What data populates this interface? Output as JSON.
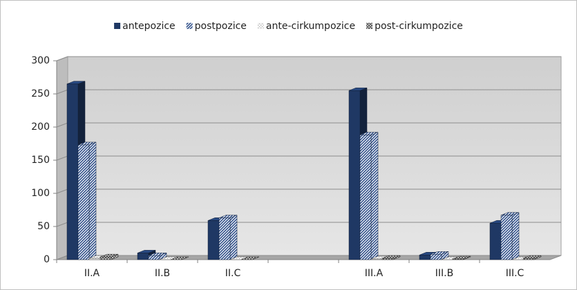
{
  "chart_data": {
    "type": "bar3d",
    "categories": [
      "II.A",
      "II.B",
      "II.C",
      null,
      "III.A",
      "III.B",
      "III.C"
    ],
    "series": [
      {
        "name": "antepozice",
        "color": "#1f3864",
        "pattern": "solid",
        "values": [
          265,
          10,
          59,
          null,
          255,
          7,
          55
        ]
      },
      {
        "name": "postpozice",
        "color": "#2f4f8a",
        "pattern": "hatch",
        "values": [
          173,
          6,
          63,
          null,
          188,
          8,
          67
        ]
      },
      {
        "name": "ante-cirkumpozice",
        "color": "#a6a6a6",
        "pattern": "dots",
        "values": [
          2,
          0,
          0,
          null,
          1,
          0,
          0
        ]
      },
      {
        "name": "post-cirkumpozice",
        "color": "#595959",
        "pattern": "checker",
        "values": [
          4,
          0,
          0,
          null,
          2,
          1,
          2
        ]
      }
    ],
    "ylim": [
      0,
      300
    ],
    "yticks": [
      0,
      50,
      100,
      150,
      200,
      250,
      300
    ],
    "grid": true,
    "legend": "top"
  }
}
